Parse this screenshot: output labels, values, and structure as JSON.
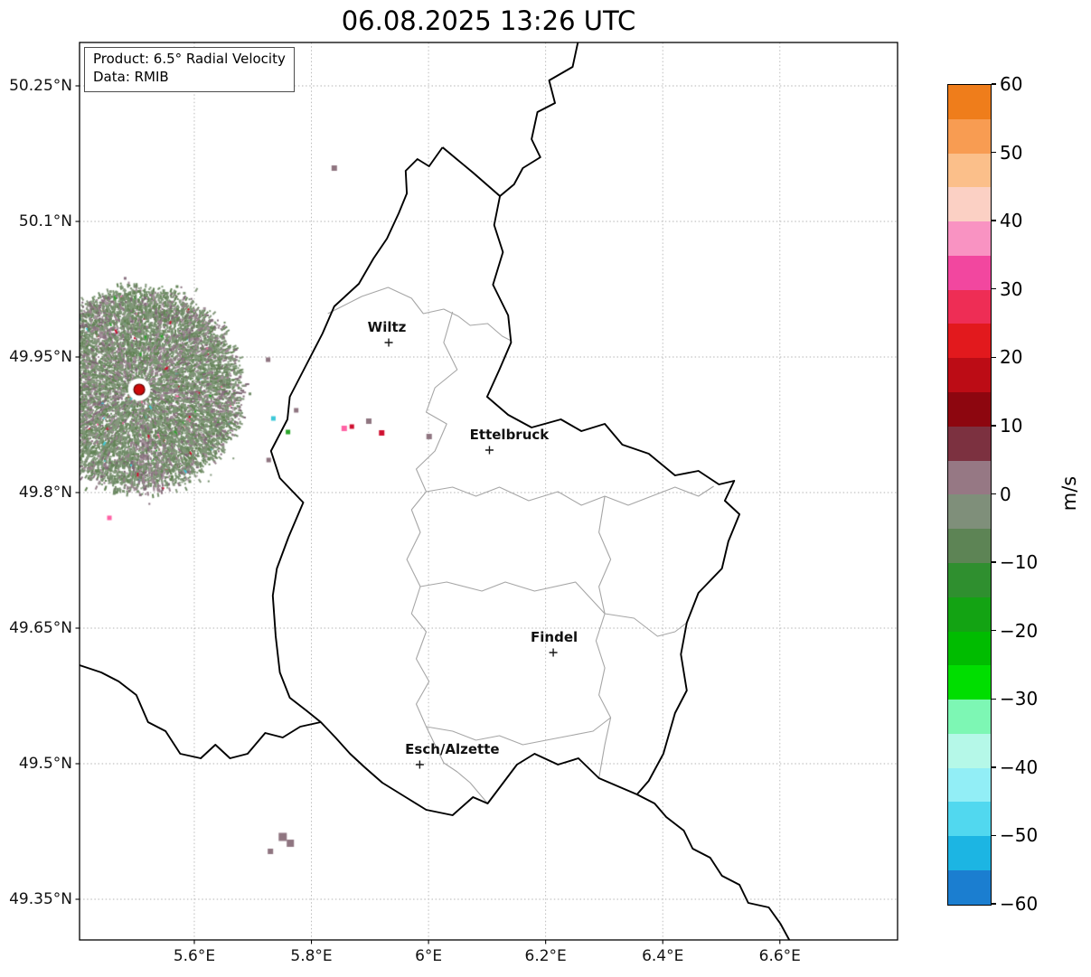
{
  "title": "06.08.2025 13:26 UTC",
  "info_box": {
    "line1": "Product: 6.5° Radial Velocity",
    "line2": "Data: RMIB"
  },
  "chart_data": {
    "type": "heatmap",
    "subtype": "weather-radar-radial-velocity-map",
    "title": "06.08.2025 13:26 UTC",
    "product": "6.5° Radial Velocity",
    "data_source": "RMIB",
    "axes": {
      "lon_range": [
        5.404,
        6.801
      ],
      "lat_range": [
        49.305,
        50.298
      ],
      "grid": "dotted",
      "x_ticks": [
        {
          "value": 5.6,
          "label": "5.6°E"
        },
        {
          "value": 5.8,
          "label": "5.8°E"
        },
        {
          "value": 6.0,
          "label": "6°E"
        },
        {
          "value": 6.2,
          "label": "6.2°E"
        },
        {
          "value": 6.4,
          "label": "6.4°E"
        },
        {
          "value": 6.6,
          "label": "6.6°E"
        }
      ],
      "y_ticks": [
        {
          "value": 50.25,
          "label": "50.25°N"
        },
        {
          "value": 50.1,
          "label": "50.1°N"
        },
        {
          "value": 49.95,
          "label": "49.95°N"
        },
        {
          "value": 49.8,
          "label": "49.8°N"
        },
        {
          "value": 49.65,
          "label": "49.65°N"
        },
        {
          "value": 49.5,
          "label": "49.5°N"
        },
        {
          "value": 49.35,
          "label": "49.35°N"
        }
      ]
    },
    "colorbar": {
      "label": "m/s",
      "min": -60,
      "max": 60,
      "ticks": [
        {
          "value": 60,
          "label": "60"
        },
        {
          "value": 50,
          "label": "50"
        },
        {
          "value": 40,
          "label": "40"
        },
        {
          "value": 30,
          "label": "30"
        },
        {
          "value": 20,
          "label": "20"
        },
        {
          "value": 10,
          "label": "10"
        },
        {
          "value": 0,
          "label": "0"
        },
        {
          "value": -10,
          "label": "−10"
        },
        {
          "value": -20,
          "label": "−20"
        },
        {
          "value": -30,
          "label": "−30"
        },
        {
          "value": -40,
          "label": "−40"
        },
        {
          "value": -50,
          "label": "−50"
        },
        {
          "value": -60,
          "label": "−60"
        }
      ],
      "segments": [
        {
          "from": 55,
          "to": 60,
          "color": "#ef7d1b"
        },
        {
          "from": 50,
          "to": 55,
          "color": "#f89c52"
        },
        {
          "from": 45,
          "to": 50,
          "color": "#fbbf8a"
        },
        {
          "from": 40,
          "to": 45,
          "color": "#fbd0c4"
        },
        {
          "from": 35,
          "to": 40,
          "color": "#f993c2"
        },
        {
          "from": 30,
          "to": 35,
          "color": "#f2479f"
        },
        {
          "from": 25,
          "to": 30,
          "color": "#ee2d55"
        },
        {
          "from": 20,
          "to": 25,
          "color": "#e2191d"
        },
        {
          "from": 15,
          "to": 20,
          "color": "#bc0c15"
        },
        {
          "from": 10,
          "to": 15,
          "color": "#8d060f"
        },
        {
          "from": 5,
          "to": 10,
          "color": "#7c3140"
        },
        {
          "from": 0,
          "to": 5,
          "color": "#967884"
        },
        {
          "from": -5,
          "to": 0,
          "color": "#7f8f7a"
        },
        {
          "from": -10,
          "to": -5,
          "color": "#5d8455"
        },
        {
          "from": -15,
          "to": -10,
          "color": "#2f8f2f"
        },
        {
          "from": -20,
          "to": -15,
          "color": "#13a313"
        },
        {
          "from": -25,
          "to": -20,
          "color": "#00bc00"
        },
        {
          "from": -30,
          "to": -25,
          "color": "#00de00"
        },
        {
          "from": -35,
          "to": -30,
          "color": "#7df7b4"
        },
        {
          "from": -40,
          "to": -35,
          "color": "#b5f8e8"
        },
        {
          "from": -45,
          "to": -40,
          "color": "#92eef6"
        },
        {
          "from": -50,
          "to": -45,
          "color": "#51d8ef"
        },
        {
          "from": -55,
          "to": -50,
          "color": "#1cb5e3"
        },
        {
          "from": -60,
          "to": -55,
          "color": "#1b7ed0"
        }
      ]
    },
    "cities": [
      {
        "name": "Wiltz",
        "lon": 5.932,
        "lat": 49.966,
        "label_dx": -2
      },
      {
        "name": "Ettelbruck",
        "lon": 6.104,
        "lat": 49.847,
        "label_dx": 22
      },
      {
        "name": "Findel",
        "lon": 6.213,
        "lat": 49.623,
        "label_dx": 1
      },
      {
        "name": "Esch/Alzette",
        "lon": 5.985,
        "lat": 49.499,
        "label_dx": 36
      }
    ],
    "radar_site": {
      "name": "radar-site",
      "lon": 5.506,
      "lat": 49.914,
      "dot_color": "#cc0a0a"
    },
    "velocity_field": {
      "center_lon": 5.506,
      "center_lat": 49.914,
      "radius_deg": 0.172,
      "seed": 1337,
      "points": 12000,
      "greens": [
        "#708c68",
        "#7d9675",
        "#628355",
        "#86997e"
      ],
      "mauves": [
        "#97808c",
        "#8a7280",
        "#a3909b",
        "#7c6673"
      ],
      "accents": [
        "#cf1030",
        "#ff62a5",
        "#3ec8d8",
        "#2aa52a",
        "#ffffff",
        "#c5b8be"
      ]
    },
    "speckles": [
      {
        "lon": 5.839,
        "lat": 50.159,
        "color": "#8f7580",
        "size": 6
      },
      {
        "lon": 5.726,
        "lat": 49.947,
        "color": "#8f7580",
        "size": 5
      },
      {
        "lon": 5.735,
        "lat": 49.882,
        "color": "#3ec8d8",
        "size": 5
      },
      {
        "lon": 5.76,
        "lat": 49.867,
        "color": "#2aa52a",
        "size": 5
      },
      {
        "lon": 5.774,
        "lat": 49.891,
        "color": "#8f7580",
        "size": 5
      },
      {
        "lon": 5.856,
        "lat": 49.871,
        "color": "#ff62a5",
        "size": 6
      },
      {
        "lon": 5.869,
        "lat": 49.873,
        "color": "#cf1030",
        "size": 5
      },
      {
        "lon": 5.898,
        "lat": 49.879,
        "color": "#8f7580",
        "size": 6
      },
      {
        "lon": 5.92,
        "lat": 49.866,
        "color": "#cf1030",
        "size": 6
      },
      {
        "lon": 6.001,
        "lat": 49.862,
        "color": "#8f7580",
        "size": 6
      },
      {
        "lon": 5.727,
        "lat": 49.836,
        "color": "#8f7580",
        "size": 5
      },
      {
        "lon": 5.455,
        "lat": 49.772,
        "color": "#ff62a5",
        "size": 5
      },
      {
        "lon": 5.751,
        "lat": 49.419,
        "color": "#8f7580",
        "size": 9
      },
      {
        "lon": 5.764,
        "lat": 49.412,
        "color": "#8f7580",
        "size": 8
      },
      {
        "lon": 5.73,
        "lat": 49.403,
        "color": "#8f7580",
        "size": 6
      }
    ],
    "borders": {
      "national_color": "#000000",
      "district_color": "#a6a6a6",
      "national": [
        [
          [
            6.024,
            50.182
          ],
          [
            6.048,
            50.169
          ],
          [
            6.076,
            50.154
          ],
          [
            6.106,
            50.137
          ],
          [
            6.122,
            50.128
          ],
          [
            6.112,
            50.096
          ],
          [
            6.127,
            50.066
          ],
          [
            6.11,
            50.03
          ],
          [
            6.136,
            49.996
          ],
          [
            6.141,
            49.966
          ],
          [
            6.121,
            49.936
          ],
          [
            6.1,
            49.906
          ],
          [
            6.136,
            49.886
          ],
          [
            6.176,
            49.872
          ],
          [
            6.226,
            49.881
          ],
          [
            6.261,
            49.868
          ],
          [
            6.301,
            49.876
          ],
          [
            6.331,
            49.853
          ],
          [
            6.376,
            49.843
          ],
          [
            6.421,
            49.819
          ],
          [
            6.461,
            49.824
          ],
          [
            6.496,
            49.809
          ],
          [
            6.522,
            49.813
          ],
          [
            6.506,
            49.791
          ],
          [
            6.531,
            49.776
          ],
          [
            6.512,
            49.746
          ],
          [
            6.501,
            49.716
          ],
          [
            6.461,
            49.689
          ],
          [
            6.441,
            49.656
          ],
          [
            6.431,
            49.621
          ],
          [
            6.441,
            49.581
          ],
          [
            6.421,
            49.556
          ],
          [
            6.401,
            49.511
          ],
          [
            6.376,
            49.481
          ],
          [
            6.356,
            49.466
          ],
          [
            6.291,
            49.484
          ],
          [
            6.256,
            49.506
          ],
          [
            6.221,
            49.499
          ],
          [
            6.181,
            49.511
          ],
          [
            6.151,
            49.499
          ],
          [
            6.101,
            49.456
          ],
          [
            6.076,
            49.463
          ],
          [
            6.041,
            49.443
          ],
          [
            5.996,
            49.449
          ],
          [
            5.961,
            49.463
          ],
          [
            5.921,
            49.479
          ],
          [
            5.891,
            49.496
          ],
          [
            5.866,
            49.511
          ],
          [
            5.841,
            49.529
          ],
          [
            5.816,
            49.546
          ],
          [
            5.791,
            49.559
          ],
          [
            5.763,
            49.573
          ],
          [
            5.746,
            49.601
          ],
          [
            5.739,
            49.641
          ],
          [
            5.734,
            49.686
          ],
          [
            5.741,
            49.716
          ],
          [
            5.761,
            49.751
          ],
          [
            5.786,
            49.789
          ],
          [
            5.746,
            49.816
          ],
          [
            5.731,
            49.846
          ],
          [
            5.759,
            49.881
          ],
          [
            5.763,
            49.906
          ],
          [
            5.791,
            49.941
          ],
          [
            5.819,
            49.976
          ],
          [
            5.839,
            50.006
          ],
          [
            5.881,
            50.031
          ],
          [
            5.906,
            50.059
          ],
          [
            5.929,
            50.081
          ],
          [
            5.949,
            50.109
          ],
          [
            5.963,
            50.131
          ],
          [
            5.961,
            50.156
          ],
          [
            5.981,
            50.169
          ],
          [
            6.001,
            50.161
          ],
          [
            6.024,
            50.182
          ]
        ],
        [
          [
            6.255,
            50.298
          ],
          [
            6.246,
            50.271
          ],
          [
            6.206,
            50.256
          ],
          [
            6.216,
            50.231
          ],
          [
            6.186,
            50.221
          ],
          [
            6.176,
            50.191
          ],
          [
            6.191,
            50.171
          ],
          [
            6.161,
            50.159
          ],
          [
            6.146,
            50.141
          ],
          [
            6.122,
            50.128
          ]
        ],
        [
          [
            5.404,
            49.609
          ],
          [
            5.441,
            49.601
          ],
          [
            5.471,
            49.591
          ],
          [
            5.501,
            49.576
          ],
          [
            5.521,
            49.546
          ],
          [
            5.551,
            49.536
          ],
          [
            5.576,
            49.511
          ],
          [
            5.611,
            49.506
          ],
          [
            5.636,
            49.521
          ],
          [
            5.661,
            49.506
          ],
          [
            5.691,
            49.511
          ],
          [
            5.721,
            49.534
          ],
          [
            5.751,
            49.529
          ],
          [
            5.781,
            49.541
          ],
          [
            5.816,
            49.546
          ]
        ],
        [
          [
            6.356,
            49.466
          ],
          [
            6.386,
            49.456
          ],
          [
            6.406,
            49.441
          ],
          [
            6.436,
            49.426
          ],
          [
            6.451,
            49.406
          ],
          [
            6.481,
            49.396
          ],
          [
            6.501,
            49.376
          ],
          [
            6.531,
            49.366
          ],
          [
            6.546,
            49.346
          ],
          [
            6.581,
            49.341
          ],
          [
            6.601,
            49.323
          ],
          [
            6.616,
            49.305
          ]
        ]
      ],
      "district": [
        [
          [
            5.828,
            49.998
          ],
          [
            5.886,
            50.017
          ],
          [
            5.931,
            50.027
          ],
          [
            5.971,
            50.015
          ],
          [
            5.991,
            49.998
          ],
          [
            6.026,
            50.003
          ],
          [
            6.051,
            49.995
          ],
          [
            6.071,
            49.985
          ],
          [
            6.101,
            49.987
          ],
          [
            6.126,
            49.973
          ],
          [
            6.141,
            49.968
          ]
        ],
        [
          [
            6.041,
            50.0
          ],
          [
            6.026,
            49.966
          ],
          [
            6.049,
            49.936
          ],
          [
            6.011,
            49.916
          ],
          [
            5.996,
            49.889
          ],
          [
            6.031,
            49.876
          ],
          [
            6.011,
            49.846
          ],
          [
            5.979,
            49.826
          ],
          [
            5.996,
            49.801
          ],
          [
            5.971,
            49.781
          ],
          [
            5.986,
            49.756
          ],
          [
            5.963,
            49.726
          ],
          [
            5.986,
            49.696
          ],
          [
            5.971,
            49.666
          ],
          [
            5.996,
            49.646
          ],
          [
            5.979,
            49.616
          ],
          [
            6.001,
            49.591
          ],
          [
            5.979,
            49.566
          ],
          [
            5.996,
            49.541
          ],
          [
            6.011,
            49.521
          ],
          [
            6.026,
            49.501
          ],
          [
            6.049,
            49.491
          ],
          [
            6.071,
            49.479
          ],
          [
            6.101,
            49.456
          ]
        ],
        [
          [
            5.996,
            49.801
          ],
          [
            6.041,
            49.806
          ],
          [
            6.081,
            49.796
          ],
          [
            6.121,
            49.806
          ],
          [
            6.171,
            49.791
          ],
          [
            6.221,
            49.801
          ],
          [
            6.261,
            49.786
          ],
          [
            6.301,
            49.796
          ],
          [
            6.341,
            49.786
          ],
          [
            6.381,
            49.796
          ],
          [
            6.421,
            49.806
          ],
          [
            6.461,
            49.796
          ],
          [
            6.487,
            49.807
          ]
        ],
        [
          [
            6.301,
            49.796
          ],
          [
            6.291,
            49.756
          ],
          [
            6.311,
            49.726
          ],
          [
            6.291,
            49.696
          ],
          [
            6.301,
            49.666
          ],
          [
            6.286,
            49.636
          ],
          [
            6.301,
            49.606
          ],
          [
            6.291,
            49.576
          ],
          [
            6.311,
            49.551
          ],
          [
            6.301,
            49.521
          ],
          [
            6.291,
            49.484
          ]
        ],
        [
          [
            5.986,
            49.696
          ],
          [
            6.031,
            49.701
          ],
          [
            6.091,
            49.691
          ],
          [
            6.131,
            49.701
          ],
          [
            6.181,
            49.691
          ],
          [
            6.251,
            49.701
          ],
          [
            6.301,
            49.666
          ],
          [
            6.351,
            49.661
          ],
          [
            6.391,
            49.641
          ],
          [
            6.421,
            49.646
          ],
          [
            6.441,
            49.656
          ]
        ],
        [
          [
            5.996,
            49.541
          ],
          [
            6.041,
            49.536
          ],
          [
            6.081,
            49.526
          ],
          [
            6.121,
            49.531
          ],
          [
            6.161,
            49.521
          ],
          [
            6.201,
            49.526
          ],
          [
            6.241,
            49.531
          ],
          [
            6.281,
            49.536
          ],
          [
            6.311,
            49.551
          ]
        ]
      ]
    }
  }
}
